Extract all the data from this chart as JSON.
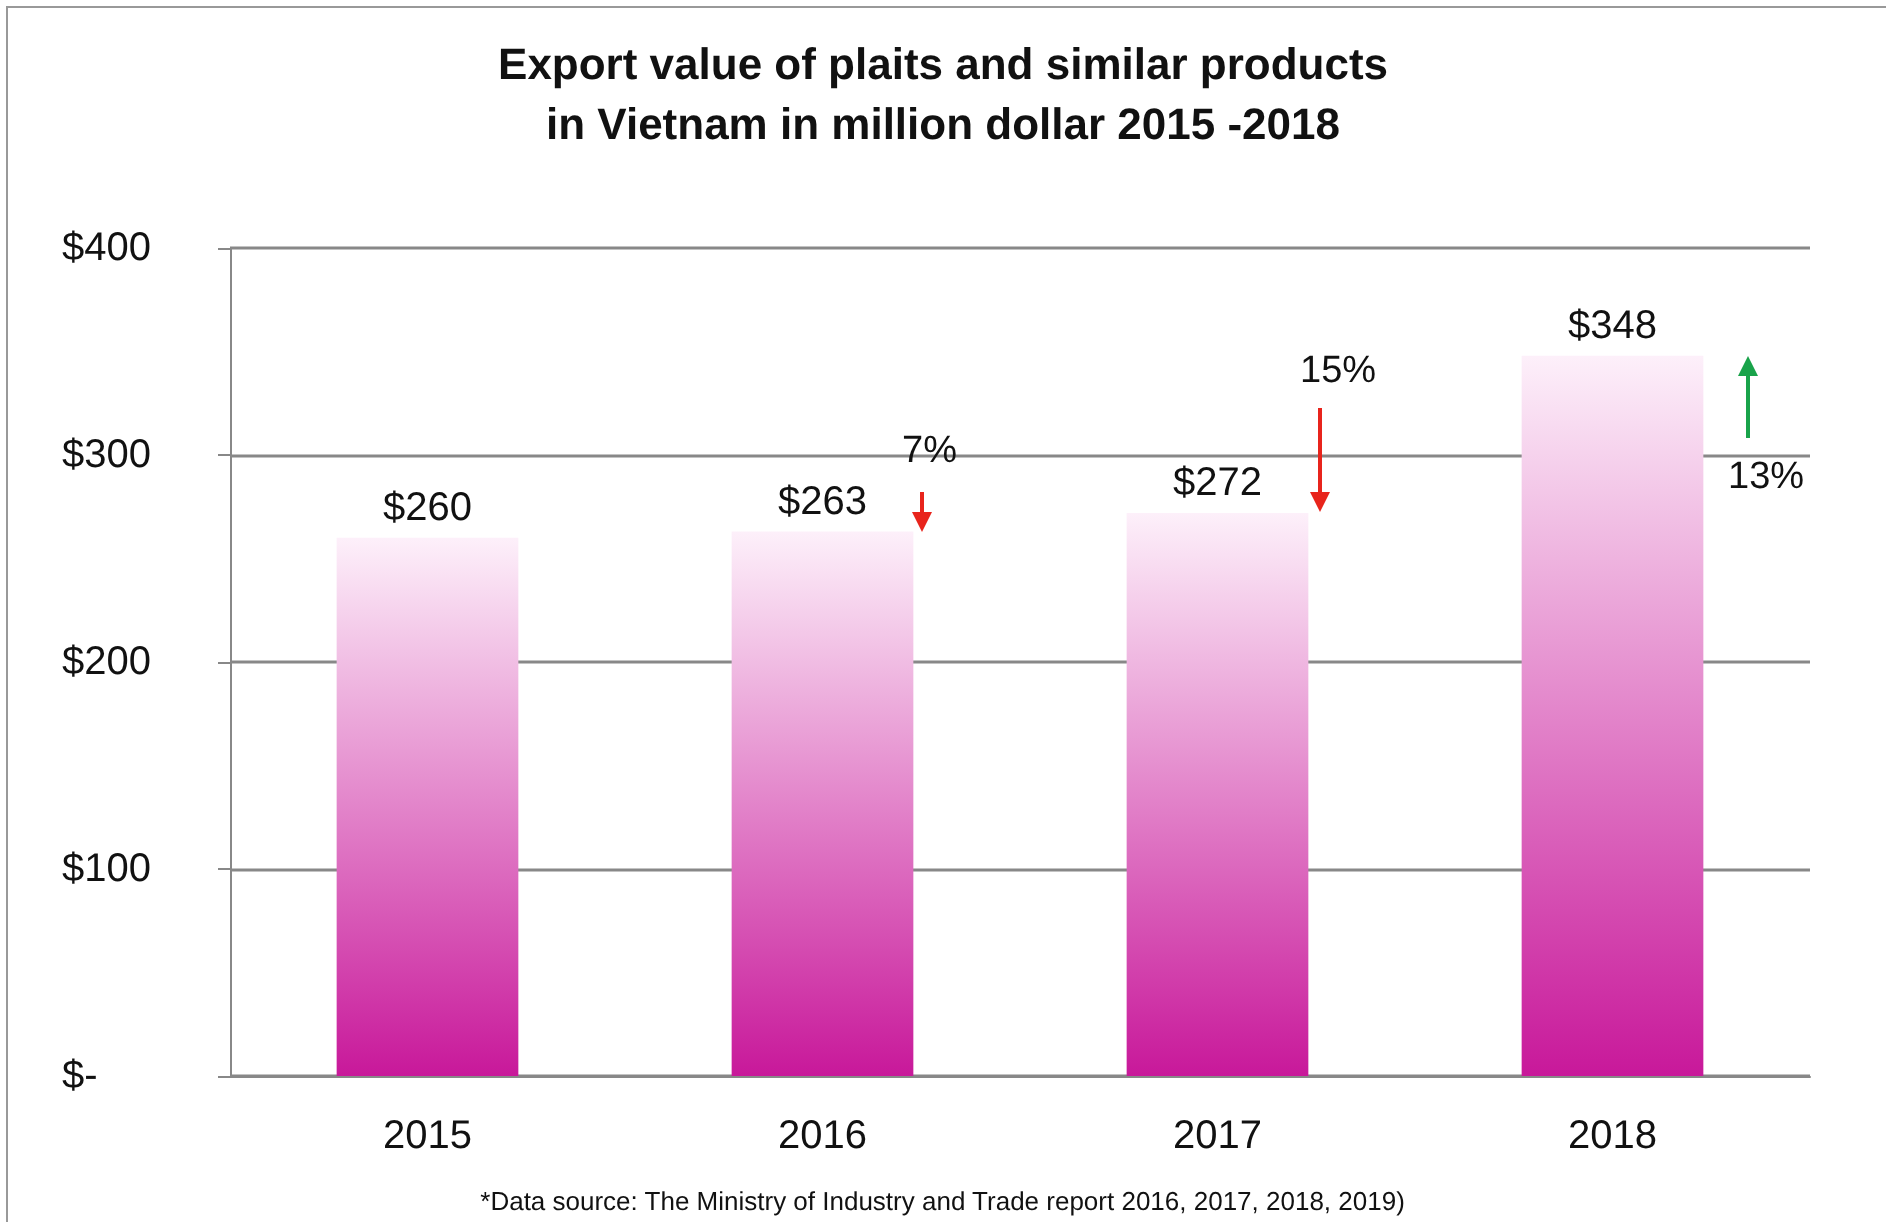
{
  "chart_data": {
    "type": "bar",
    "title": "Export value of plaits and similar products\nin Vietnam in million dollar 2015 -2018",
    "categories": [
      "2015",
      "2016",
      "2017",
      "2018"
    ],
    "values": [
      260,
      263,
      272,
      348
    ],
    "value_labels": [
      "$260",
      "$263",
      "$272",
      "$348"
    ],
    "color": "#c8189a",
    "ylim": [
      0,
      400
    ],
    "yticks": [
      {
        "value": 0,
        "label": "$-"
      },
      {
        "value": 100,
        "label": "$100"
      },
      {
        "value": 200,
        "label": "$200"
      },
      {
        "value": 300,
        "label": "$300"
      },
      {
        "value": 400,
        "label": "$400"
      }
    ],
    "grid": "y",
    "annotations": [
      "7%",
      "15%",
      "13%",
      "*Data source: The Ministry of Industry and Trade report 2016, 2017, 2018, 2019)"
    ]
  }
}
